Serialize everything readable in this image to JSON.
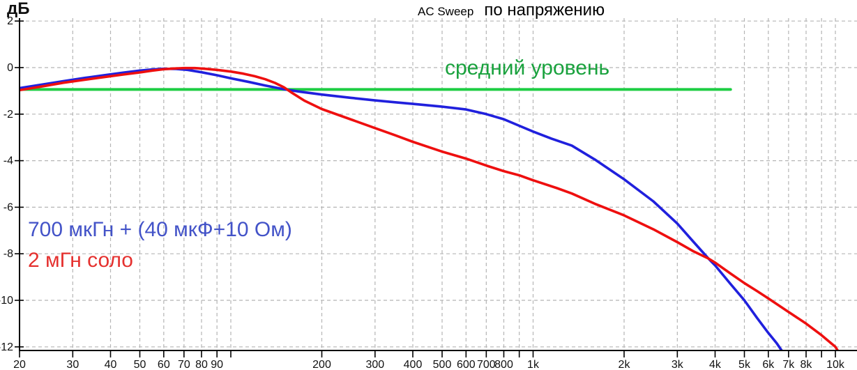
{
  "y_axis_unit": "дБ",
  "title": {
    "app": "AC Sweep",
    "mode": "по напряжению"
  },
  "annotations": {
    "average": "средний уровень",
    "blue_series": "700 мкГн + (40 мкФ+10 Ом)",
    "red_series": "2 мГн соло"
  },
  "colors": {
    "blue_line": "#2020dd",
    "red_line": "#ee0f0f",
    "green_line": "#1dcd43",
    "blue_text": "#4353c8",
    "red_text": "#e5312f",
    "green_text": "#1aa23e",
    "grid": "#b5b5b5",
    "axis": "#000000",
    "tick_text": "#111111"
  },
  "chart_data": {
    "type": "line",
    "title": "AC Sweep по напряжению",
    "ylabel": "дБ",
    "x_scale": "log",
    "x_unit": "Hz",
    "xlim": [
      20,
      11800
    ],
    "ylim": [
      -12.35,
      2
    ],
    "grid": true,
    "legend_position": "inline-annotations",
    "y_ticks": [
      {
        "db": 2,
        "label": "2"
      },
      {
        "db": 0,
        "label": "0"
      },
      {
        "db": -2,
        "label": "-2"
      },
      {
        "db": -4,
        "label": "-4"
      },
      {
        "db": -6,
        "label": "-6"
      },
      {
        "db": -8,
        "label": "-8"
      },
      {
        "db": -10,
        "label": "-10"
      },
      {
        "db": -12,
        "label": "-12"
      }
    ],
    "x_ticks": [
      {
        "f": 20,
        "label": "20",
        "grid": false
      },
      {
        "f": 30,
        "label": "30",
        "grid": true
      },
      {
        "f": 40,
        "label": "40",
        "grid": true
      },
      {
        "f": 50,
        "label": "50",
        "grid": true
      },
      {
        "f": 60,
        "label": "60",
        "grid": true
      },
      {
        "f": 70,
        "label": "70",
        "grid": true
      },
      {
        "f": 80,
        "label": "80",
        "grid": true
      },
      {
        "f": 90,
        "label": "90",
        "grid": true
      },
      {
        "f": 100,
        "label": "",
        "grid": true
      },
      {
        "f": 200,
        "label": "200",
        "grid": true
      },
      {
        "f": 300,
        "label": "300",
        "grid": true
      },
      {
        "f": 400,
        "label": "400",
        "grid": true
      },
      {
        "f": 500,
        "label": "500",
        "grid": true
      },
      {
        "f": 600,
        "label": "600",
        "grid": true
      },
      {
        "f": 700,
        "label": "700",
        "grid": true
      },
      {
        "f": 800,
        "label": "800",
        "grid": true
      },
      {
        "f": 900,
        "label": "",
        "grid": true
      },
      {
        "f": 1000,
        "label": "1k",
        "grid": true
      },
      {
        "f": 2000,
        "label": "2k",
        "grid": true
      },
      {
        "f": 3000,
        "label": "3k",
        "grid": true
      },
      {
        "f": 4000,
        "label": "4k",
        "grid": true
      },
      {
        "f": 5000,
        "label": "5k",
        "grid": true
      },
      {
        "f": 6000,
        "label": "6k",
        "grid": true
      },
      {
        "f": 7000,
        "label": "7k",
        "grid": true
      },
      {
        "f": 8000,
        "label": "8k",
        "grid": true
      },
      {
        "f": 9000,
        "label": "",
        "grid": true
      },
      {
        "f": 10000,
        "label": "10k",
        "grid": true
      }
    ],
    "series": [
      {
        "name": "средний уровень",
        "color_key": "green_line",
        "width": 4,
        "points": [
          [
            20,
            -0.94
          ],
          [
            4500,
            -0.94
          ]
        ]
      },
      {
        "name": "700 мкГн + (40 мкФ+10 Ом)",
        "color_key": "blue_line",
        "width": 3.6,
        "points": [
          [
            20,
            -0.88
          ],
          [
            24,
            -0.72
          ],
          [
            28,
            -0.58
          ],
          [
            33,
            -0.44
          ],
          [
            38,
            -0.33
          ],
          [
            44,
            -0.22
          ],
          [
            50,
            -0.13
          ],
          [
            55,
            -0.08
          ],
          [
            60,
            -0.05
          ],
          [
            66,
            -0.06
          ],
          [
            72,
            -0.1
          ],
          [
            80,
            -0.2
          ],
          [
            90,
            -0.33
          ],
          [
            100,
            -0.46
          ],
          [
            115,
            -0.62
          ],
          [
            130,
            -0.77
          ],
          [
            150,
            -0.93
          ],
          [
            170,
            -1.04
          ],
          [
            200,
            -1.16
          ],
          [
            250,
            -1.3
          ],
          [
            300,
            -1.41
          ],
          [
            350,
            -1.49
          ],
          [
            400,
            -1.56
          ],
          [
            500,
            -1.68
          ],
          [
            600,
            -1.8
          ],
          [
            700,
            -2.0
          ],
          [
            800,
            -2.22
          ],
          [
            900,
            -2.5
          ],
          [
            1000,
            -2.75
          ],
          [
            1150,
            -3.05
          ],
          [
            1343,
            -3.35
          ],
          [
            1600,
            -3.95
          ],
          [
            2000,
            -4.8
          ],
          [
            2500,
            -5.75
          ],
          [
            3000,
            -6.7
          ],
          [
            3400,
            -7.5
          ],
          [
            3800,
            -8.2
          ],
          [
            4000,
            -8.5
          ],
          [
            4500,
            -9.3
          ],
          [
            5000,
            -10.0
          ],
          [
            5500,
            -10.75
          ],
          [
            6000,
            -11.4
          ],
          [
            6400,
            -11.85
          ],
          [
            6800,
            -12.35
          ]
        ]
      },
      {
        "name": "2 мГн соло",
        "color_key": "red_line",
        "width": 3.6,
        "points": [
          [
            20,
            -0.97
          ],
          [
            24,
            -0.8
          ],
          [
            28,
            -0.65
          ],
          [
            33,
            -0.52
          ],
          [
            38,
            -0.41
          ],
          [
            44,
            -0.3
          ],
          [
            50,
            -0.21
          ],
          [
            55,
            -0.13
          ],
          [
            60,
            -0.07
          ],
          [
            65,
            -0.04
          ],
          [
            70,
            -0.02
          ],
          [
            76,
            -0.02
          ],
          [
            82,
            -0.05
          ],
          [
            90,
            -0.1
          ],
          [
            100,
            -0.17
          ],
          [
            110,
            -0.26
          ],
          [
            120,
            -0.37
          ],
          [
            130,
            -0.5
          ],
          [
            140,
            -0.66
          ],
          [
            150,
            -0.85
          ],
          [
            160,
            -1.1
          ],
          [
            175,
            -1.42
          ],
          [
            200,
            -1.78
          ],
          [
            250,
            -2.23
          ],
          [
            300,
            -2.6
          ],
          [
            350,
            -2.91
          ],
          [
            400,
            -3.19
          ],
          [
            500,
            -3.61
          ],
          [
            600,
            -3.91
          ],
          [
            700,
            -4.21
          ],
          [
            800,
            -4.45
          ],
          [
            900,
            -4.63
          ],
          [
            1000,
            -4.84
          ],
          [
            1200,
            -5.18
          ],
          [
            1343,
            -5.41
          ],
          [
            1600,
            -5.85
          ],
          [
            2000,
            -6.35
          ],
          [
            2500,
            -6.95
          ],
          [
            3000,
            -7.5
          ],
          [
            3400,
            -7.9
          ],
          [
            3800,
            -8.2
          ],
          [
            4000,
            -8.38
          ],
          [
            4500,
            -8.85
          ],
          [
            5000,
            -9.26
          ],
          [
            5500,
            -9.6
          ],
          [
            6000,
            -9.92
          ],
          [
            7000,
            -10.5
          ],
          [
            8000,
            -11.0
          ],
          [
            9000,
            -11.5
          ],
          [
            10000,
            -12.0
          ],
          [
            10400,
            -12.35
          ]
        ]
      }
    ]
  }
}
